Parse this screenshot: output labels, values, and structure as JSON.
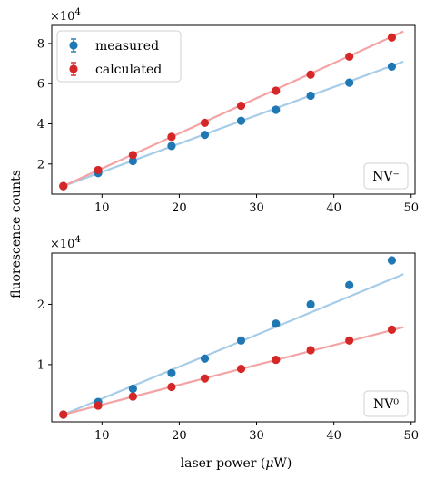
{
  "chart_data": [
    {
      "type": "scatter",
      "panel_label": "NV⁻",
      "multiplier": "×10",
      "multiplier_exp": "4",
      "xlim": [
        3.5,
        50.5
      ],
      "ylim": [
        0.5,
        8.9
      ],
      "xticks": [
        10,
        20,
        30,
        40,
        50
      ],
      "yticks": [
        2,
        4,
        6,
        8
      ],
      "grid": false,
      "legend_position": "top-left",
      "series": [
        {
          "name": "measured",
          "color": "#1f77b4",
          "x": [
            5,
            9.5,
            14,
            19,
            23.3,
            28,
            32.5,
            37,
            42,
            47.5
          ],
          "y": [
            0.9,
            1.55,
            2.15,
            2.9,
            3.45,
            4.15,
            4.7,
            5.4,
            6.05,
            6.85
          ]
        },
        {
          "name": "calculated",
          "color": "#d62728",
          "x": [
            5,
            9.5,
            14,
            19,
            23.3,
            28,
            32.5,
            37,
            42,
            47.5
          ],
          "y": [
            0.9,
            1.7,
            2.45,
            3.35,
            4.05,
            4.9,
            5.65,
            6.45,
            7.35,
            8.3
          ]
        }
      ],
      "fits": [
        {
          "color": "#a6cce8",
          "x": [
            5,
            49
          ],
          "y": [
            0.9,
            7.1
          ]
        },
        {
          "color": "#f3a3a3",
          "x": [
            5,
            49
          ],
          "y": [
            0.9,
            8.6
          ]
        }
      ]
    },
    {
      "type": "scatter",
      "panel_label": "NV⁰",
      "multiplier": "×10",
      "multiplier_exp": "4",
      "xlim": [
        3.5,
        50.5
      ],
      "ylim": [
        0.05,
        2.85
      ],
      "xticks": [
        10,
        20,
        30,
        40,
        50
      ],
      "yticks": [
        1,
        2
      ],
      "grid": false,
      "series": [
        {
          "name": "measured",
          "color": "#1f77b4",
          "x": [
            5,
            9.5,
            14,
            19,
            23.3,
            28,
            32.5,
            37,
            42,
            47.5
          ],
          "y": [
            0.17,
            0.38,
            0.6,
            0.86,
            1.1,
            1.4,
            1.68,
            2.0,
            2.32,
            2.73
          ]
        },
        {
          "name": "calculated",
          "color": "#d62728",
          "x": [
            5,
            9.5,
            14,
            19,
            23.3,
            28,
            32.5,
            37,
            42,
            47.5
          ],
          "y": [
            0.17,
            0.32,
            0.47,
            0.63,
            0.77,
            0.93,
            1.08,
            1.24,
            1.4,
            1.58
          ]
        }
      ],
      "fits": [
        {
          "color": "#a6cce8",
          "x": [
            5,
            49
          ],
          "y": [
            0.17,
            2.5
          ]
        },
        {
          "color": "#f3a3a3",
          "x": [
            5,
            49
          ],
          "y": [
            0.17,
            1.62
          ]
        }
      ]
    }
  ],
  "labels": {
    "ylabel": "fluorescence counts",
    "xlabel_prefix": "laser power (",
    "xlabel_mu": "μ",
    "xlabel_suffix": "W)"
  }
}
